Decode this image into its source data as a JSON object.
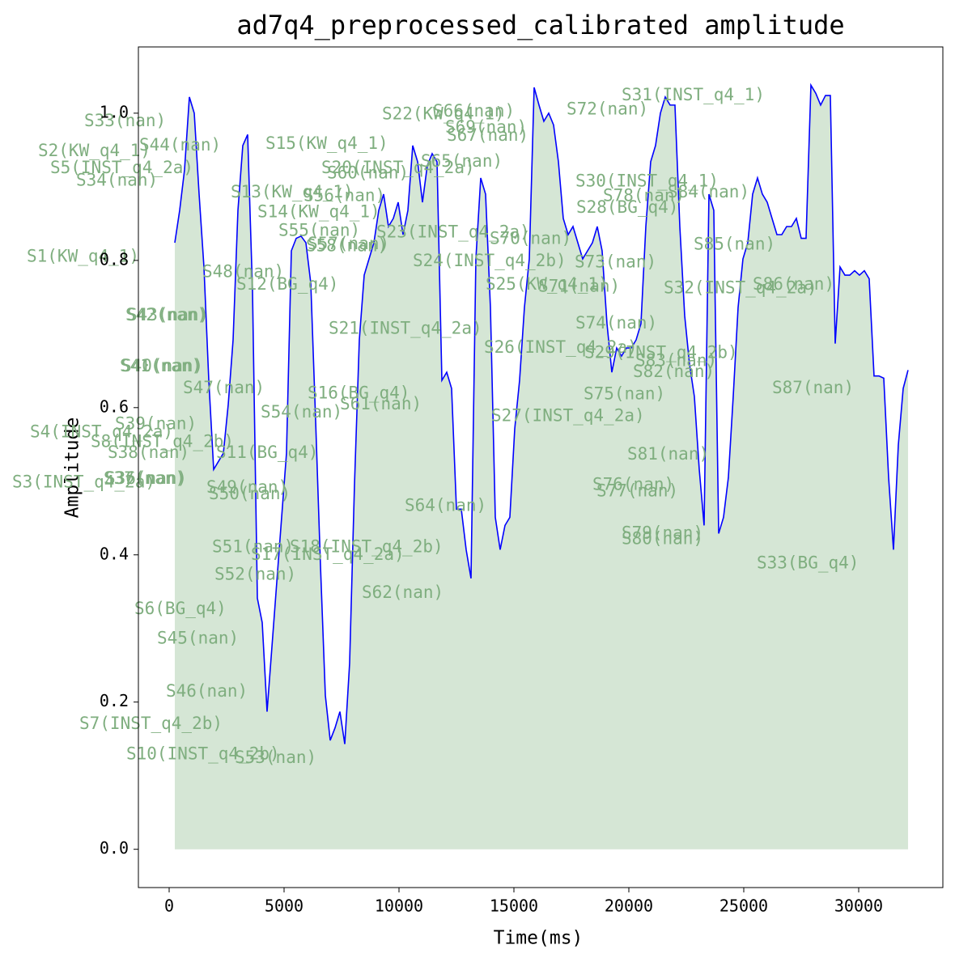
{
  "chart_data": {
    "type": "line",
    "title": "ad7q4_preprocessed_calibrated amplitude",
    "xlabel": "Time(ms)",
    "ylabel": "Amplitude",
    "xlim": [
      -1338,
      33662
    ],
    "ylim": [
      -0.052,
      1.09
    ],
    "xticks": [
      0,
      5000,
      10000,
      15000,
      20000,
      25000,
      30000
    ],
    "yticks": [
      {
        "value": 0,
        "label": "0.0"
      },
      0.2,
      0.4,
      0.6,
      0.8,
      {
        "value": 1,
        "label": "1.0"
      }
    ],
    "grid": false,
    "annotation_color": "#7fae7f",
    "x": [
      246,
      458,
      669,
      880,
      1092,
      1303,
      1514,
      1725,
      1937,
      2148,
      2359,
      2570,
      2782,
      2993,
      3204,
      3415,
      3627,
      3838,
      4049,
      4260,
      4472,
      4683,
      4894,
      5105,
      5317,
      5528,
      5739,
      5950,
      6162,
      6373,
      6584,
      6796,
      7007,
      7218,
      7429,
      7641,
      7852,
      8063,
      8274,
      8486,
      8697,
      8908,
      9120,
      9331,
      9542,
      9753,
      9965,
      10176,
      10387,
      10598,
      10810,
      11021,
      11232,
      11443,
      11655,
      11866,
      12077,
      12288,
      12500,
      12711,
      12922,
      13133,
      13345,
      13556,
      13767,
      13978,
      14190,
      14401,
      14612,
      14823,
      15035,
      15246,
      15457,
      15669,
      15880,
      16091,
      16302,
      16514,
      16725,
      16936,
      17147,
      17359,
      17570,
      17781,
      17992,
      18204,
      18415,
      18626,
      18837,
      19049,
      19260,
      19471,
      19682,
      19894,
      20105,
      20316,
      20527,
      20739,
      20950,
      21161,
      21373,
      21584,
      21795,
      22006,
      22218,
      22429,
      22640,
      22851,
      23063,
      23274,
      23485,
      23696,
      23908,
      24119,
      24330,
      24541,
      24753,
      24964,
      25175,
      25386,
      25598,
      25809,
      26020,
      26231,
      26443,
      26654,
      26865,
      27076,
      27288,
      27499,
      27710,
      27922,
      28133,
      28344,
      28555,
      28767,
      28978,
      29189,
      29401,
      29612,
      29823,
      30034,
      30246,
      30457,
      30668,
      30879,
      31091,
      31302,
      31513,
      31724,
      31936,
      32147
    ],
    "series": [
      {
        "color": "#0000ff",
        "fill_color": "#d5e6d5",
        "values": [
          0.824,
          0.868,
          0.923,
          1.022,
          1.0,
          0.89,
          0.791,
          0.637,
          0.516,
          0.527,
          0.538,
          0.604,
          0.692,
          0.868,
          0.956,
          0.971,
          0.758,
          0.341,
          0.308,
          0.187,
          0.275,
          0.363,
          0.451,
          0.538,
          0.813,
          0.83,
          0.833,
          0.824,
          0.769,
          0.582,
          0.385,
          0.209,
          0.148,
          0.165,
          0.187,
          0.143,
          0.253,
          0.495,
          0.692,
          0.78,
          0.802,
          0.824,
          0.868,
          0.89,
          0.846,
          0.857,
          0.879,
          0.835,
          0.868,
          0.956,
          0.934,
          0.879,
          0.929,
          0.945,
          0.934,
          0.637,
          0.648,
          0.626,
          0.462,
          0.462,
          0.407,
          0.368,
          0.802,
          0.912,
          0.89,
          0.736,
          0.451,
          0.407,
          0.44,
          0.451,
          0.571,
          0.637,
          0.736,
          0.802,
          1.035,
          1.011,
          0.989,
          1.0,
          0.984,
          0.934,
          0.857,
          0.835,
          0.846,
          0.824,
          0.802,
          0.813,
          0.824,
          0.846,
          0.813,
          0.714,
          0.648,
          0.681,
          0.67,
          0.681,
          0.681,
          0.692,
          0.714,
          0.846,
          0.934,
          0.956,
          1.0,
          1.022,
          1.011,
          1.011,
          0.846,
          0.725,
          0.659,
          0.615,
          0.516,
          0.44,
          0.89,
          0.868,
          0.429,
          0.451,
          0.505,
          0.615,
          0.736,
          0.802,
          0.824,
          0.89,
          0.912,
          0.89,
          0.879,
          0.857,
          0.835,
          0.835,
          0.846,
          0.846,
          0.857,
          0.83,
          0.83,
          1.038,
          1.027,
          1.011,
          1.024,
          1.024,
          0.687,
          0.791,
          0.78,
          0.78,
          0.786,
          0.78,
          0.786,
          0.775,
          0.643,
          0.643,
          0.64,
          0.505,
          0.407,
          0.549,
          0.626,
          0.651
        ]
      }
    ],
    "annotations": [
      {
        "text": "S33(nan)",
        "x": -3697,
        "y": 0.989
      },
      {
        "text": "S2(KW_q4_1)",
        "x": -5704,
        "y": 0.948
      },
      {
        "text": "S44(nan)",
        "x": -1303,
        "y": 0.956
      },
      {
        "text": "S5(INST_q4_2a)",
        "x": -5176,
        "y": 0.925
      },
      {
        "text": "S34(nan)",
        "x": -4049,
        "y": 0.908
      },
      {
        "text": "S1(KW_q4_1)",
        "x": -6197,
        "y": 0.805
      },
      {
        "text": "S48(nan)",
        "x": 1444,
        "y": 0.784
      },
      {
        "text": "S12(BG_q4)",
        "x": 2922,
        "y": 0.767
      },
      {
        "text": "S42(nan)",
        "x": -1901,
        "y": 0.725
      },
      {
        "text": "S43(nan)",
        "x": -1831,
        "y": 0.725
      },
      {
        "text": "S41(nan)",
        "x": -2148,
        "y": 0.656
      },
      {
        "text": "S40(nan)",
        "x": -2077,
        "y": 0.656
      },
      {
        "text": "S47(nan)",
        "x": 599,
        "y": 0.626
      },
      {
        "text": "S54(nan)",
        "x": 3979,
        "y": 0.593
      },
      {
        "text": "S39(nan)",
        "x": -2359,
        "y": 0.577
      },
      {
        "text": "S4(INST_q4_2a)",
        "x": -6056,
        "y": 0.566
      },
      {
        "text": "S8(INST_q4_2b)",
        "x": -3415,
        "y": 0.553
      },
      {
        "text": "S38(nan)",
        "x": -2676,
        "y": 0.538
      },
      {
        "text": "S11(BG_q4)",
        "x": 2042,
        "y": 0.538
      },
      {
        "text": "S37(nan)",
        "x": -2852,
        "y": 0.503
      },
      {
        "text": "S36(nan)",
        "x": -2782,
        "y": 0.503
      },
      {
        "text": "S3(INST_q4_2a)",
        "x": -6831,
        "y": 0.498
      },
      {
        "text": "S49(nan)",
        "x": 1620,
        "y": 0.491
      },
      {
        "text": "S50(nan)",
        "x": 1725,
        "y": 0.482
      },
      {
        "text": "S51(nan)",
        "x": 1866,
        "y": 0.41
      },
      {
        "text": "S17(INST_q4_2a)",
        "x": 3556,
        "y": 0.4
      },
      {
        "text": "S18(INST_q4_2b)",
        "x": 5246,
        "y": 0.41
      },
      {
        "text": "S52(nan)",
        "x": 1972,
        "y": 0.373
      },
      {
        "text": "S6(BG_q4)",
        "x": -1514,
        "y": 0.326
      },
      {
        "text": "S45(nan)",
        "x": -528,
        "y": 0.286
      },
      {
        "text": "S46(nan)",
        "x": -141,
        "y": 0.214
      },
      {
        "text": "S7(INST_q4_2b)",
        "x": -3908,
        "y": 0.17
      },
      {
        "text": "S10(INST_q4_2b)",
        "x": -1866,
        "y": 0.129
      },
      {
        "text": "S53(nan)",
        "x": 2852,
        "y": 0.124
      },
      {
        "text": "S15(KW_q4_1)",
        "x": 4190,
        "y": 0.958
      },
      {
        "text": "S22(KW_q4_1)",
        "x": 9260,
        "y": 0.998
      },
      {
        "text": "S66(nan)",
        "x": 11478,
        "y": 1.002
      },
      {
        "text": "S69(nan)",
        "x": 12007,
        "y": 0.98
      },
      {
        "text": "S67(nan)",
        "x": 12077,
        "y": 0.969
      },
      {
        "text": "S20(INST_q4_2a)",
        "x": 6619,
        "y": 0.925
      },
      {
        "text": "S65(nan)",
        "x": 10950,
        "y": 0.934
      },
      {
        "text": "S60(nan)",
        "x": 6866,
        "y": 0.918
      },
      {
        "text": "S13(KW_q4_1)",
        "x": 2676,
        "y": 0.892
      },
      {
        "text": "S56(nan)",
        "x": 5845,
        "y": 0.887
      },
      {
        "text": "S14(KW_q4_1)",
        "x": 3838,
        "y": 0.865
      },
      {
        "text": "S55(nan)",
        "x": 4753,
        "y": 0.84
      },
      {
        "text": "S23(INST_q4_2a)",
        "x": 9014,
        "y": 0.838
      },
      {
        "text": "S58(nan)",
        "x": 5950,
        "y": 0.819
      },
      {
        "text": "S57(nan)",
        "x": 6021,
        "y": 0.822
      },
      {
        "text": "S70(nan)",
        "x": 13943,
        "y": 0.829
      },
      {
        "text": "S24(INST_q4_2b)",
        "x": 10598,
        "y": 0.799
      },
      {
        "text": "S73(nan)",
        "x": 17640,
        "y": 0.797
      },
      {
        "text": "S25(KW_q4_1)",
        "x": 13767,
        "y": 0.767
      },
      {
        "text": "S71(nan)",
        "x": 16056,
        "y": 0.764
      },
      {
        "text": "S21(INST_q4_2a)",
        "x": 6936,
        "y": 0.707
      },
      {
        "text": "S26(INST_q4_2a)",
        "x": 13697,
        "y": 0.681
      },
      {
        "text": "S16(BG_q4)",
        "x": 6021,
        "y": 0.619
      },
      {
        "text": "S61(nan)",
        "x": 7429,
        "y": 0.604
      },
      {
        "text": "S27(INST_q4_2a)",
        "x": 14014,
        "y": 0.588
      },
      {
        "text": "S64(nan)",
        "x": 10246,
        "y": 0.466
      },
      {
        "text": "S62(nan)",
        "x": 8380,
        "y": 0.348
      },
      {
        "text": "S72(nan)",
        "x": 17288,
        "y": 1.005
      },
      {
        "text": "S31(INST_q4_1)",
        "x": 19682,
        "y": 1.024
      },
      {
        "text": "S30(INST_q4_1)",
        "x": 17676,
        "y": 0.907
      },
      {
        "text": "S78(nan)",
        "x": 18873,
        "y": 0.887
      },
      {
        "text": "S84(nan)",
        "x": 21689,
        "y": 0.892
      },
      {
        "text": "S28(BG_q4)",
        "x": 17711,
        "y": 0.871
      },
      {
        "text": "S85(nan)",
        "x": 22816,
        "y": 0.821
      },
      {
        "text": "S32(INST_q4_2a)",
        "x": 21514,
        "y": 0.762
      },
      {
        "text": "S86(nan)",
        "x": 25386,
        "y": 0.767
      },
      {
        "text": "S74(nan)",
        "x": 17676,
        "y": 0.714
      },
      {
        "text": "S29(INST_q4_2b)",
        "x": 18063,
        "y": 0.674
      },
      {
        "text": "S83(nan)",
        "x": 20281,
        "y": 0.663
      },
      {
        "text": "S82(nan)",
        "x": 20175,
        "y": 0.648
      },
      {
        "text": "S75(nan)",
        "x": 18028,
        "y": 0.618
      },
      {
        "text": "S87(nan)",
        "x": 26231,
        "y": 0.626
      },
      {
        "text": "S81(nan)",
        "x": 19929,
        "y": 0.536
      },
      {
        "text": "S76(nan)",
        "x": 18415,
        "y": 0.495
      },
      {
        "text": "S77(nan)",
        "x": 18591,
        "y": 0.486
      },
      {
        "text": "S79(nan)",
        "x": 19682,
        "y": 0.429
      },
      {
        "text": "S80(nan)",
        "x": 19682,
        "y": 0.421
      },
      {
        "text": "S33(BG_q4)",
        "x": 25563,
        "y": 0.388
      }
    ]
  }
}
